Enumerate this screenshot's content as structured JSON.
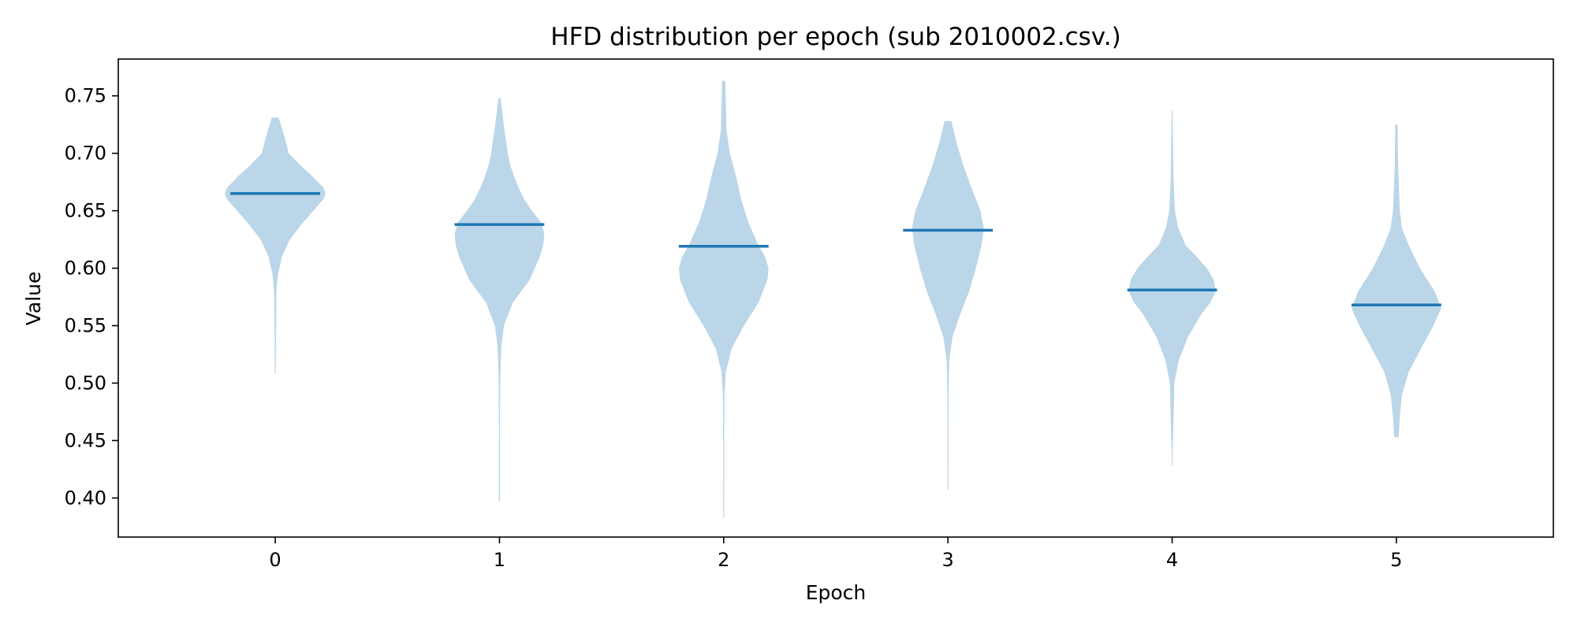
{
  "chart_data": {
    "type": "violin",
    "title": "HFD distribution per epoch (sub 2010002.csv.)",
    "xlabel": "Epoch",
    "ylabel": "Value",
    "x_ticks": [
      "0",
      "1",
      "2",
      "3",
      "4",
      "5"
    ],
    "y_ticks": [
      "0.40",
      "0.45",
      "0.50",
      "0.55",
      "0.60",
      "0.65",
      "0.70",
      "0.75"
    ],
    "xlim": [
      -0.7,
      5.7
    ],
    "ylim": [
      0.366,
      0.782
    ],
    "grid": false,
    "fill_color": "#bbd6e8",
    "median_color": "#1f77b4",
    "series": [
      {
        "epoch": 0,
        "min": 0.508,
        "max": 0.731,
        "median": 0.665,
        "profile": [
          [
            0.508,
            0.004
          ],
          [
            0.52,
            0.005
          ],
          [
            0.55,
            0.007
          ],
          [
            0.58,
            0.01
          ],
          [
            0.595,
            0.025
          ],
          [
            0.61,
            0.06
          ],
          [
            0.625,
            0.13
          ],
          [
            0.64,
            0.25
          ],
          [
            0.65,
            0.34
          ],
          [
            0.66,
            0.43
          ],
          [
            0.665,
            0.45
          ],
          [
            0.67,
            0.43
          ],
          [
            0.68,
            0.33
          ],
          [
            0.69,
            0.22
          ],
          [
            0.7,
            0.12
          ],
          [
            0.71,
            0.095
          ],
          [
            0.72,
            0.065
          ],
          [
            0.731,
            0.03
          ]
        ]
      },
      {
        "epoch": 1,
        "min": 0.397,
        "max": 0.748,
        "median": 0.638,
        "profile": [
          [
            0.397,
            0.005
          ],
          [
            0.45,
            0.005
          ],
          [
            0.5,
            0.006
          ],
          [
            0.53,
            0.015
          ],
          [
            0.55,
            0.04
          ],
          [
            0.57,
            0.12
          ],
          [
            0.59,
            0.27
          ],
          [
            0.61,
            0.36
          ],
          [
            0.62,
            0.39
          ],
          [
            0.63,
            0.4
          ],
          [
            0.64,
            0.37
          ],
          [
            0.65,
            0.29
          ],
          [
            0.66,
            0.22
          ],
          [
            0.67,
            0.17
          ],
          [
            0.68,
            0.13
          ],
          [
            0.69,
            0.095
          ],
          [
            0.7,
            0.075
          ],
          [
            0.72,
            0.045
          ],
          [
            0.735,
            0.025
          ],
          [
            0.748,
            0.01
          ]
        ]
      },
      {
        "epoch": 2,
        "min": 0.383,
        "max": 0.763,
        "median": 0.619,
        "profile": [
          [
            0.383,
            0.004
          ],
          [
            0.45,
            0.005
          ],
          [
            0.49,
            0.007
          ],
          [
            0.51,
            0.02
          ],
          [
            0.53,
            0.07
          ],
          [
            0.55,
            0.18
          ],
          [
            0.57,
            0.31
          ],
          [
            0.59,
            0.39
          ],
          [
            0.6,
            0.4
          ],
          [
            0.61,
            0.37
          ],
          [
            0.62,
            0.31
          ],
          [
            0.64,
            0.22
          ],
          [
            0.66,
            0.155
          ],
          [
            0.68,
            0.11
          ],
          [
            0.7,
            0.055
          ],
          [
            0.72,
            0.025
          ],
          [
            0.74,
            0.02
          ],
          [
            0.763,
            0.015
          ]
        ]
      },
      {
        "epoch": 3,
        "min": 0.407,
        "max": 0.728,
        "median": 0.633,
        "profile": [
          [
            0.407,
            0.004
          ],
          [
            0.47,
            0.005
          ],
          [
            0.5,
            0.006
          ],
          [
            0.52,
            0.012
          ],
          [
            0.54,
            0.04
          ],
          [
            0.56,
            0.11
          ],
          [
            0.58,
            0.19
          ],
          [
            0.6,
            0.25
          ],
          [
            0.62,
            0.3
          ],
          [
            0.635,
            0.32
          ],
          [
            0.65,
            0.29
          ],
          [
            0.67,
            0.21
          ],
          [
            0.69,
            0.135
          ],
          [
            0.71,
            0.075
          ],
          [
            0.728,
            0.03
          ]
        ]
      },
      {
        "epoch": 4,
        "min": 0.428,
        "max": 0.737,
        "median": 0.581,
        "profile": [
          [
            0.428,
            0.003
          ],
          [
            0.44,
            0.005
          ],
          [
            0.46,
            0.01
          ],
          [
            0.48,
            0.015
          ],
          [
            0.5,
            0.02
          ],
          [
            0.52,
            0.06
          ],
          [
            0.54,
            0.14
          ],
          [
            0.56,
            0.26
          ],
          [
            0.57,
            0.34
          ],
          [
            0.58,
            0.39
          ],
          [
            0.59,
            0.37
          ],
          [
            0.6,
            0.31
          ],
          [
            0.61,
            0.22
          ],
          [
            0.62,
            0.12
          ],
          [
            0.635,
            0.055
          ],
          [
            0.65,
            0.025
          ],
          [
            0.68,
            0.012
          ],
          [
            0.71,
            0.008
          ],
          [
            0.737,
            0.004
          ]
        ]
      },
      {
        "epoch": 5,
        "min": 0.453,
        "max": 0.725,
        "median": 0.568,
        "profile": [
          [
            0.453,
            0.02
          ],
          [
            0.47,
            0.03
          ],
          [
            0.49,
            0.05
          ],
          [
            0.51,
            0.11
          ],
          [
            0.53,
            0.22
          ],
          [
            0.55,
            0.33
          ],
          [
            0.565,
            0.4
          ],
          [
            0.58,
            0.34
          ],
          [
            0.6,
            0.21
          ],
          [
            0.62,
            0.11
          ],
          [
            0.635,
            0.05
          ],
          [
            0.65,
            0.03
          ],
          [
            0.69,
            0.015
          ],
          [
            0.725,
            0.01
          ]
        ]
      }
    ]
  }
}
